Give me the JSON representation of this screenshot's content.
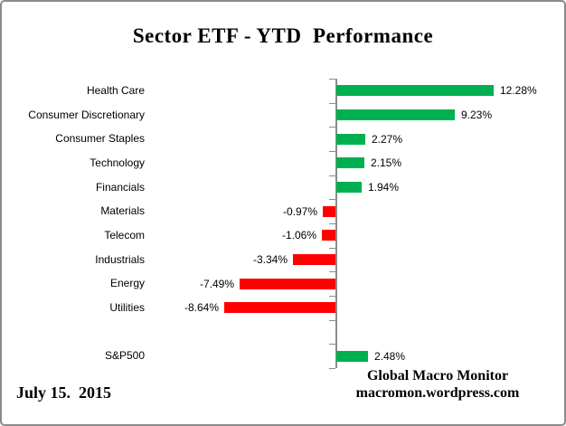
{
  "chart_data": {
    "type": "bar",
    "orientation": "horizontal",
    "title": "Sector ETF - YTD  Performance",
    "xlabel": "",
    "ylabel": "",
    "categories": [
      "Health Care",
      "Consumer Discretionary",
      "Consumer Staples",
      "Technology",
      "Financials",
      "Materials",
      "Telecom",
      "Industrials",
      "Energy",
      "Utilities",
      "",
      "S&P500"
    ],
    "values": [
      12.28,
      9.23,
      2.27,
      2.15,
      1.94,
      -0.97,
      -1.06,
      -3.34,
      -7.49,
      -8.64,
      null,
      2.48
    ],
    "value_labels": [
      "12.28%",
      "9.23%",
      "2.27%",
      "2.15%",
      "1.94%",
      "-0.97%",
      "-1.06%",
      "-3.34%",
      "-7.49%",
      "-8.64%",
      "",
      "2.48%"
    ],
    "positive_color": "#00B050",
    "negative_color": "#FF0000",
    "axis_color": "#8C8C8C",
    "xlim": [
      -12,
      17
    ],
    "grid": "off",
    "legend": "none",
    "value_axis_tick_labels": "none"
  },
  "footer": {
    "date": "July 15.  2015",
    "source_line1": "Global Macro Monitor",
    "source_line2": "macromon.wordpress.com"
  }
}
